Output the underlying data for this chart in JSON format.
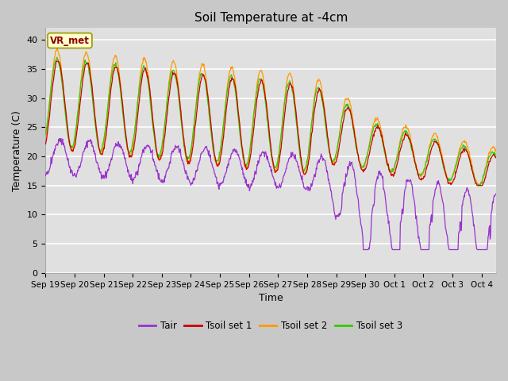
{
  "title": "Soil Temperature at -4cm",
  "xlabel": "Time",
  "ylabel": "Temperature (C)",
  "ylim": [
    0,
    42
  ],
  "yticks": [
    0,
    5,
    10,
    15,
    20,
    25,
    30,
    35,
    40
  ],
  "plot_bg_color": "#e0e0e0",
  "fig_bg_color": "#c8c8c8",
  "series_colors": {
    "Tair": "#9933cc",
    "Tsoil1": "#cc0000",
    "Tsoil2": "#ff9900",
    "Tsoil3": "#33cc00"
  },
  "legend_entries": [
    "Tair",
    "Tsoil set 1",
    "Tsoil set 2",
    "Tsoil set 3"
  ],
  "title_fontsize": 11,
  "axis_fontsize": 9,
  "tick_fontsize": 8,
  "n_points": 900,
  "xlim_max": 15.5
}
